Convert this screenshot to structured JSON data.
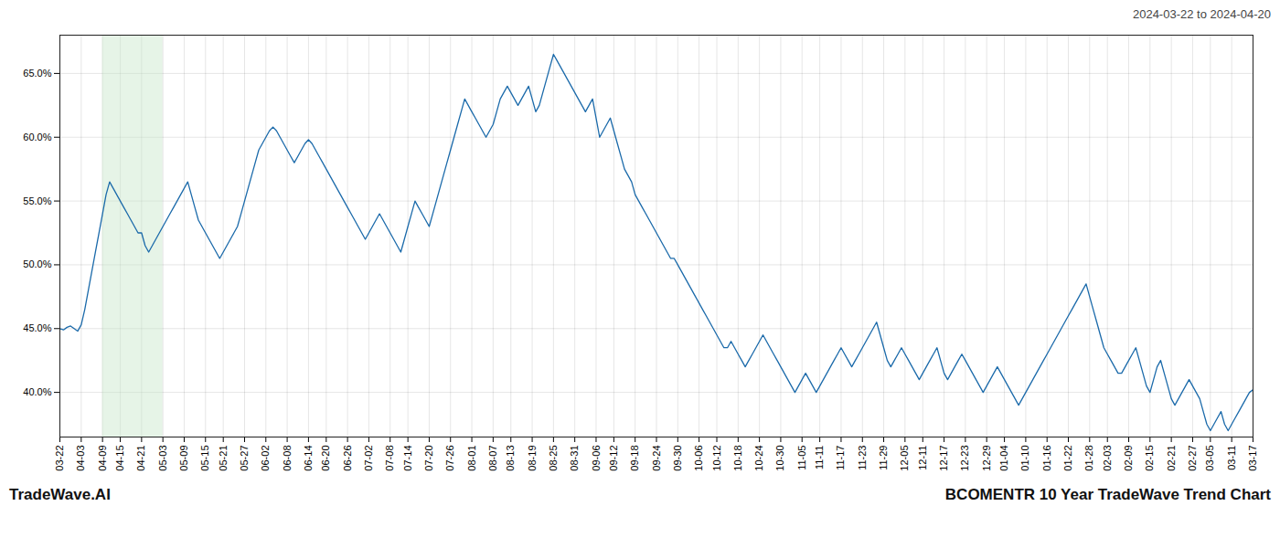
{
  "chart_data": {
    "type": "line",
    "title": "BCOMENTR 10 Year TradeWave Trend Chart",
    "subtitle": "2024-03-22 to 2024-04-20",
    "annotations": [
      "TradeWave.AI"
    ],
    "color": "#1b6aaa",
    "grid": true,
    "shaded": {
      "from": "04-09",
      "to": "05-03",
      "color": "#c8e6c9"
    },
    "ylim": [
      36.5,
      68.0
    ],
    "yticks": [
      {
        "value": 40.0,
        "label": "40.0%"
      },
      {
        "value": 45.0,
        "label": "45.0%"
      },
      {
        "value": 50.0,
        "label": "50.0%"
      },
      {
        "value": 55.0,
        "label": "55.0%"
      },
      {
        "value": 60.0,
        "label": "60.0%"
      },
      {
        "value": 65.0,
        "label": "65.0%"
      }
    ],
    "categories": [
      "03-22",
      null,
      null,
      null,
      null,
      null,
      "04-03",
      null,
      null,
      null,
      null,
      null,
      "04-09",
      null,
      null,
      null,
      null,
      "04-15",
      null,
      null,
      null,
      null,
      null,
      "04-21",
      null,
      null,
      null,
      null,
      null,
      "05-03",
      null,
      null,
      null,
      null,
      null,
      "05-09",
      null,
      null,
      null,
      null,
      null,
      "05-15",
      null,
      null,
      null,
      null,
      "05-21",
      null,
      null,
      null,
      null,
      null,
      "05-27",
      null,
      null,
      null,
      null,
      null,
      "06-02",
      null,
      null,
      null,
      null,
      null,
      "06-08",
      null,
      null,
      null,
      null,
      null,
      "06-14",
      null,
      null,
      null,
      null,
      "06-20",
      null,
      null,
      null,
      null,
      null,
      "06-26",
      null,
      null,
      null,
      null,
      null,
      "07-02",
      null,
      null,
      null,
      null,
      null,
      "07-08",
      null,
      null,
      null,
      null,
      "07-14",
      null,
      null,
      null,
      null,
      null,
      "07-20",
      null,
      null,
      null,
      null,
      null,
      "07-26",
      null,
      null,
      null,
      null,
      null,
      "08-01",
      null,
      null,
      null,
      null,
      null,
      "08-07",
      null,
      null,
      null,
      null,
      "08-13",
      null,
      null,
      null,
      null,
      null,
      "08-19",
      null,
      null,
      null,
      null,
      null,
      "08-25",
      null,
      null,
      null,
      null,
      null,
      "08-31",
      null,
      null,
      null,
      null,
      null,
      "09-06",
      null,
      null,
      null,
      null,
      "09-12",
      null,
      null,
      null,
      null,
      null,
      "09-18",
      null,
      null,
      null,
      null,
      null,
      "09-24",
      null,
      null,
      null,
      null,
      null,
      "09-30",
      null,
      null,
      null,
      null,
      null,
      "10-06",
      null,
      null,
      null,
      null,
      "10-12",
      null,
      null,
      null,
      null,
      null,
      "10-18",
      null,
      null,
      null,
      null,
      null,
      "10-24",
      null,
      null,
      null,
      null,
      null,
      "10-30",
      null,
      null,
      null,
      null,
      null,
      "11-05",
      null,
      null,
      null,
      null,
      "11-11",
      null,
      null,
      null,
      null,
      null,
      "11-17",
      null,
      null,
      null,
      null,
      null,
      "11-23",
      null,
      null,
      null,
      null,
      null,
      "11-29",
      null,
      null,
      null,
      null,
      null,
      "12-05",
      null,
      null,
      null,
      null,
      "12-11",
      null,
      null,
      null,
      null,
      null,
      "12-17",
      null,
      null,
      null,
      null,
      null,
      "12-23",
      null,
      null,
      null,
      null,
      null,
      "12-29",
      null,
      null,
      null,
      null,
      "01-04",
      null,
      null,
      null,
      null,
      null,
      "01-10",
      null,
      null,
      null,
      null,
      null,
      "01-16",
      null,
      null,
      null,
      null,
      null,
      "01-22",
      null,
      null,
      null,
      null,
      null,
      "01-28",
      null,
      null,
      null,
      null,
      "02-03",
      null,
      null,
      null,
      null,
      null,
      "02-09",
      null,
      null,
      null,
      null,
      null,
      "02-15",
      null,
      null,
      null,
      null,
      null,
      "02-21",
      null,
      null,
      null,
      null,
      null,
      "02-27",
      null,
      null,
      null,
      null,
      "03-05",
      null,
      null,
      null,
      null,
      null,
      "03-11",
      null,
      null,
      null,
      null,
      null,
      "03-17"
    ],
    "values": [
      45.0,
      44.9,
      45.1,
      45.2,
      45.0,
      44.8,
      45.3,
      46.5,
      48.0,
      49.5,
      51.0,
      52.5,
      54.0,
      55.5,
      56.5,
      56.0,
      55.5,
      55.0,
      54.5,
      54.0,
      53.5,
      53.0,
      52.5,
      52.5,
      51.5,
      51.0,
      51.5,
      52.0,
      52.5,
      53.0,
      53.5,
      54.0,
      54.5,
      55.0,
      55.5,
      56.0,
      56.5,
      55.5,
      54.5,
      53.5,
      53.0,
      52.5,
      52.0,
      51.5,
      51.0,
      50.5,
      51.0,
      51.5,
      52.0,
      52.5,
      53.0,
      54.0,
      55.0,
      56.0,
      57.0,
      58.0,
      59.0,
      59.5,
      60.0,
      60.5,
      60.8,
      60.5,
      60.0,
      59.5,
      59.0,
      58.5,
      58.0,
      58.5,
      59.0,
      59.5,
      59.8,
      59.5,
      59.0,
      58.5,
      58.0,
      57.5,
      57.0,
      56.5,
      56.0,
      55.5,
      55.0,
      54.5,
      54.0,
      53.5,
      53.0,
      52.5,
      52.0,
      52.5,
      53.0,
      53.5,
      54.0,
      53.5,
      53.0,
      52.5,
      52.0,
      51.5,
      51.0,
      52.0,
      53.0,
      54.0,
      55.0,
      54.5,
      54.0,
      53.5,
      53.0,
      54.0,
      55.0,
      56.0,
      57.0,
      58.0,
      59.0,
      60.0,
      61.0,
      62.0,
      63.0,
      62.5,
      62.0,
      61.5,
      61.0,
      60.5,
      60.0,
      60.5,
      61.0,
      62.0,
      63.0,
      63.5,
      64.0,
      63.5,
      63.0,
      62.5,
      63.0,
      63.5,
      64.0,
      63.0,
      62.0,
      62.5,
      63.5,
      64.5,
      65.5,
      66.5,
      66.0,
      65.5,
      65.0,
      64.5,
      64.0,
      63.5,
      63.0,
      62.5,
      62.0,
      62.5,
      63.0,
      61.5,
      60.0,
      60.5,
      61.0,
      61.5,
      60.5,
      59.5,
      58.5,
      57.5,
      57.0,
      56.5,
      55.5,
      55.0,
      54.5,
      54.0,
      53.5,
      53.0,
      52.5,
      52.0,
      51.5,
      51.0,
      50.5,
      50.5,
      50.0,
      49.5,
      49.0,
      48.5,
      48.0,
      47.5,
      47.0,
      46.5,
      46.0,
      45.5,
      45.0,
      44.5,
      44.0,
      43.5,
      43.5,
      44.0,
      43.5,
      43.0,
      42.5,
      42.0,
      42.5,
      43.0,
      43.5,
      44.0,
      44.5,
      44.0,
      43.5,
      43.0,
      42.5,
      42.0,
      41.5,
      41.0,
      40.5,
      40.0,
      40.5,
      41.0,
      41.5,
      41.0,
      40.5,
      40.0,
      40.5,
      41.0,
      41.5,
      42.0,
      42.5,
      43.0,
      43.5,
      43.0,
      42.5,
      42.0,
      42.5,
      43.0,
      43.5,
      44.0,
      44.5,
      45.0,
      45.5,
      44.5,
      43.5,
      42.5,
      42.0,
      42.5,
      43.0,
      43.5,
      43.0,
      42.5,
      42.0,
      41.5,
      41.0,
      41.5,
      42.0,
      42.5,
      43.0,
      43.5,
      42.5,
      41.5,
      41.0,
      41.5,
      42.0,
      42.5,
      43.0,
      42.5,
      42.0,
      41.5,
      41.0,
      40.5,
      40.0,
      40.5,
      41.0,
      41.5,
      42.0,
      41.5,
      41.0,
      40.5,
      40.0,
      39.5,
      39.0,
      39.5,
      40.0,
      40.5,
      41.0,
      41.5,
      42.0,
      42.5,
      43.0,
      43.5,
      44.0,
      44.5,
      45.0,
      45.5,
      46.0,
      46.5,
      47.0,
      47.5,
      48.0,
      48.5,
      47.5,
      46.5,
      45.5,
      44.5,
      43.5,
      43.0,
      42.5,
      42.0,
      41.5,
      41.5,
      42.0,
      42.5,
      43.0,
      43.5,
      42.5,
      41.5,
      40.5,
      40.0,
      41.0,
      42.0,
      42.5,
      41.5,
      40.5,
      39.5,
      39.0,
      39.5,
      40.0,
      40.5,
      41.0,
      40.5,
      40.0,
      39.5,
      38.5,
      37.5,
      37.0,
      37.5,
      38.0,
      38.5,
      37.5,
      37.0,
      37.5,
      38.0,
      38.5,
      39.0,
      39.5,
      40.0,
      40.2
    ]
  }
}
